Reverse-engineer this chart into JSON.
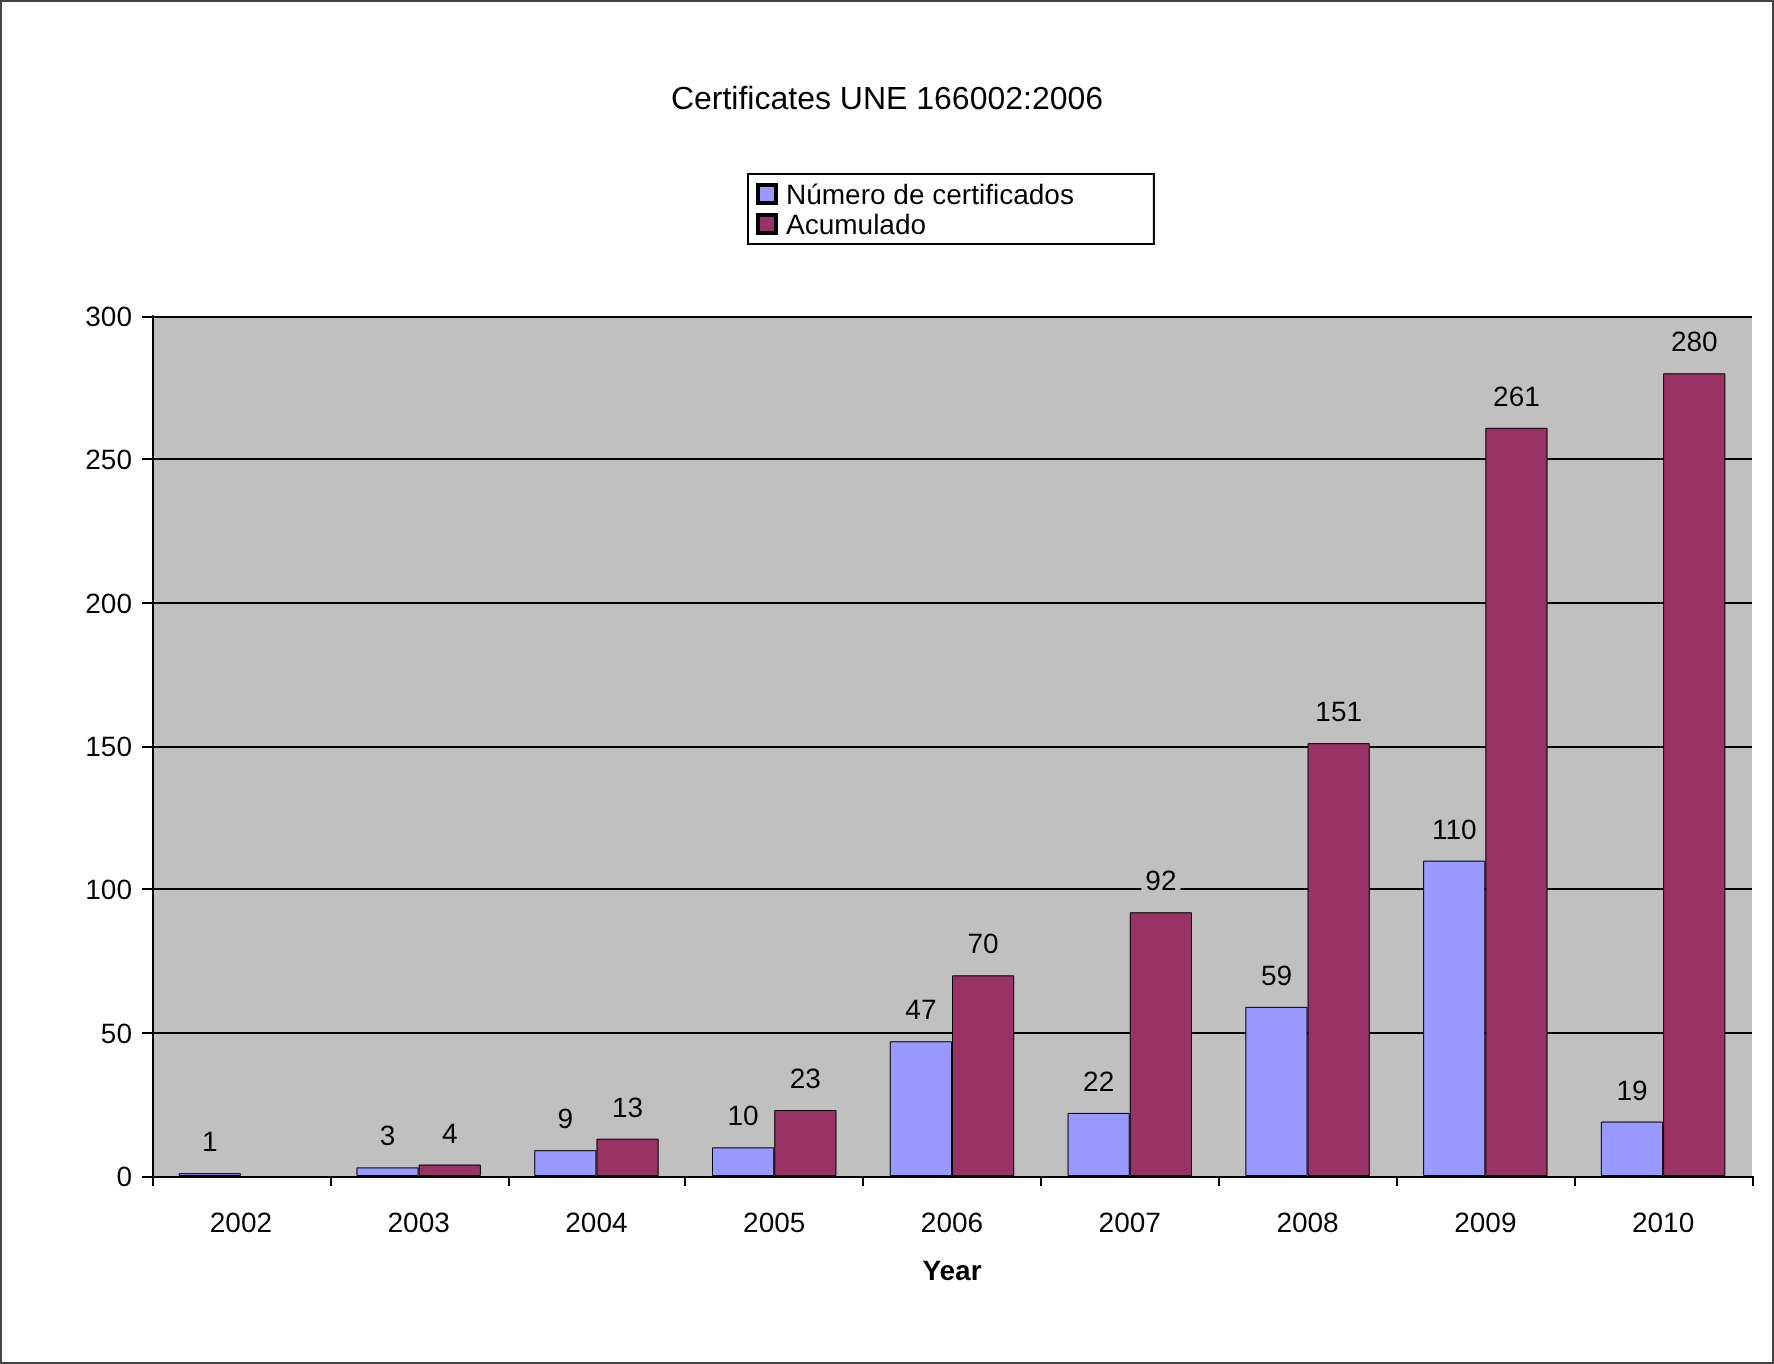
{
  "chart_data": {
    "type": "bar",
    "title": "Certificates UNE 166002:2006",
    "xlabel": "Year",
    "categories": [
      "2002",
      "2003",
      "2004",
      "2005",
      "2006",
      "2007",
      "2008",
      "2009",
      "2010"
    ],
    "series": [
      {
        "name": "Número de certificados",
        "color": "#9999ff",
        "values": [
          1,
          3,
          9,
          10,
          47,
          22,
          59,
          110,
          19
        ],
        "value_labels": [
          "1",
          "3",
          "9",
          "10",
          "47",
          "22",
          "59",
          "110",
          "19"
        ]
      },
      {
        "name": "Acumulado",
        "color": "#993366",
        "values": [
          null,
          4,
          13,
          23,
          70,
          92,
          151,
          261,
          280
        ],
        "value_labels": [
          null,
          "4",
          "13",
          "23",
          "70",
          "92",
          "151",
          "261",
          "280"
        ]
      }
    ],
    "ylim": [
      0,
      300
    ],
    "yticks": [
      0,
      50,
      100,
      150,
      200,
      250,
      300
    ],
    "grid": "y",
    "legend": "top"
  }
}
